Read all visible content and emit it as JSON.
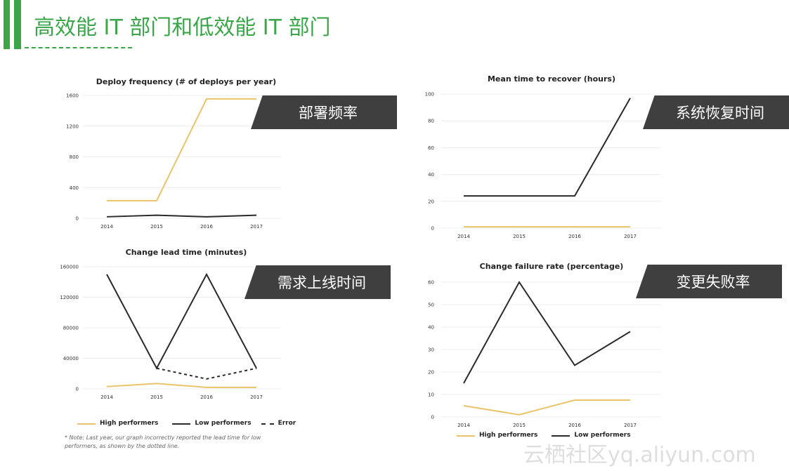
{
  "header": {
    "title": "高效能 IT 部门和低效能 IT 部门"
  },
  "colors": {
    "accent": "#3aa64a",
    "high": "#e8c46a",
    "low": "#2a2a2a",
    "label_bg": "#3f3f3f"
  },
  "labels": [
    "部署频率",
    "系统恢复时间",
    "需求上线时间",
    "变更失败率"
  ],
  "legend": {
    "high": "High performers",
    "low": "Low performers",
    "error": "Error"
  },
  "note": "* Note: Last year, our graph incorrectly reported the lead time for low performers, as shown by the dotted line.",
  "watermark": "云栖社区yq.aliyun.com",
  "chart_data": [
    {
      "type": "line",
      "title": "Deploy frequency (# of deploys per year)",
      "categories": [
        "2014",
        "2015",
        "2016",
        "2017"
      ],
      "yticks": [
        0,
        400,
        800,
        1200,
        1600
      ],
      "ylim": [
        0,
        1600
      ],
      "grid": true,
      "series": [
        {
          "name": "High performers",
          "values": [
            230,
            230,
            1555,
            1555
          ]
        },
        {
          "name": "Low performers",
          "values": [
            20,
            40,
            20,
            40
          ]
        }
      ]
    },
    {
      "type": "line",
      "title": "Mean time to recover (hours)",
      "categories": [
        "2014",
        "2015",
        "2016",
        "2017"
      ],
      "yticks": [
        0,
        20,
        40,
        60,
        80,
        100
      ],
      "ylim": [
        0,
        100
      ],
      "grid": true,
      "series": [
        {
          "name": "High performers",
          "values": [
            1,
            1,
            1,
            1
          ]
        },
        {
          "name": "Low performers",
          "values": [
            24,
            24,
            24,
            97
          ]
        }
      ]
    },
    {
      "type": "line",
      "title": "Change lead time (minutes)",
      "categories": [
        "2014",
        "2015",
        "2016",
        "2017"
      ],
      "yticks": [
        0,
        40000,
        80000,
        120000,
        160000
      ],
      "ylim": [
        0,
        160000
      ],
      "grid": true,
      "legend": "bottom",
      "series": [
        {
          "name": "High performers",
          "values": [
            3000,
            7000,
            2000,
            2000
          ]
        },
        {
          "name": "Low performers",
          "values": [
            150000,
            27000,
            150000,
            27000
          ]
        },
        {
          "name": "Error",
          "values": [
            null,
            27000,
            13000,
            27000
          ]
        }
      ]
    },
    {
      "type": "line",
      "title": "Change failure rate (percentage)",
      "categories": [
        "2014",
        "2015",
        "2016",
        "2017"
      ],
      "yticks": [
        0,
        10,
        20,
        30,
        40,
        50,
        60
      ],
      "ylim": [
        0,
        60
      ],
      "grid": true,
      "legend": "bottom",
      "series": [
        {
          "name": "High performers",
          "values": [
            5,
            1,
            7.5,
            7.5
          ]
        },
        {
          "name": "Low performers",
          "values": [
            15,
            60,
            23,
            38
          ]
        }
      ]
    }
  ]
}
